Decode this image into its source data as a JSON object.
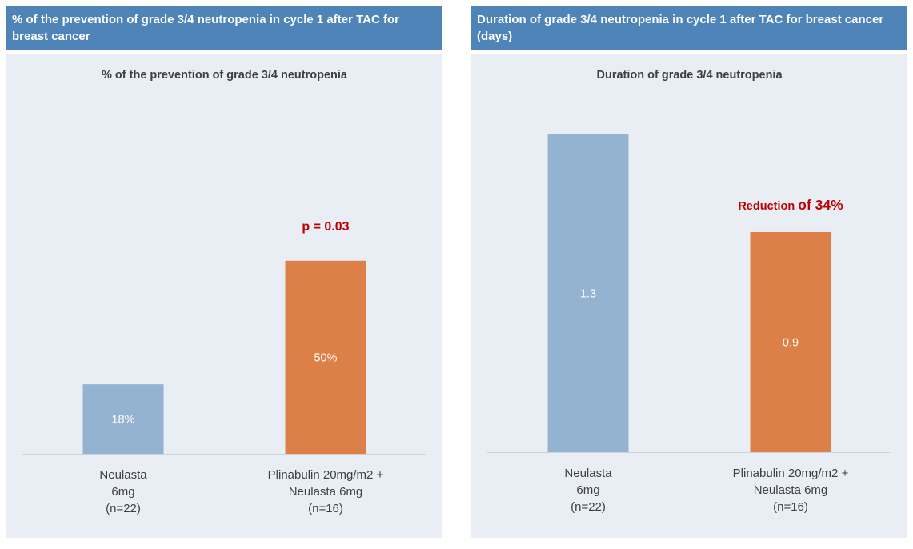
{
  "panels": [
    {
      "header": "% of the prevention of grade 3/4 neutropenia in cycle 1 after TAC for breast cancer",
      "colors": {
        "header_bg": "#4f84b8",
        "panel_bg": "#e9edf4"
      }
    },
    {
      "header": "Duration of grade 3/4 neutropenia in cycle 1 after TAC for breast cancer (days)",
      "colors": {
        "header_bg": "#4f84b8",
        "panel_bg": "#e9edf4"
      }
    }
  ],
  "chart_data": [
    {
      "type": "bar",
      "title": "% of the prevention of grade 3/4 neutropenia",
      "categories": [
        [
          "Neulasta",
          "6mg",
          "(n=22)"
        ],
        [
          "Plinabulin 20mg/m2 +",
          "Neulasta 6mg",
          "(n=16)"
        ]
      ],
      "values": [
        18,
        50
      ],
      "data_labels": [
        "18%",
        "50%"
      ],
      "bar_colors": [
        "#93b3d1",
        "#dd8047"
      ],
      "ylim": [
        0,
        91
      ],
      "annotation": {
        "text": "p = 0.03",
        "color": "#c00000",
        "category_index": 1
      },
      "grid": false,
      "xlabel": "",
      "ylabel": ""
    },
    {
      "type": "bar",
      "title": "Duration of grade 3/4 neutropenia",
      "categories": [
        [
          "Neulasta",
          "6mg",
          "(n=22)"
        ],
        [
          "Plinabulin 20mg/m2 +",
          "Neulasta 6mg",
          "(n=16)"
        ]
      ],
      "values": [
        1.3,
        0.9
      ],
      "data_labels": [
        "1.3",
        "0.9"
      ],
      "bar_colors": [
        "#93b3d1",
        "#dd8047"
      ],
      "ylim": [
        0,
        1.43
      ],
      "annotation": {
        "parts": [
          "Reduction ",
          "of 34%"
        ],
        "color": "#c00000",
        "category_index": 1
      },
      "grid": false,
      "xlabel": "",
      "ylabel": ""
    }
  ]
}
